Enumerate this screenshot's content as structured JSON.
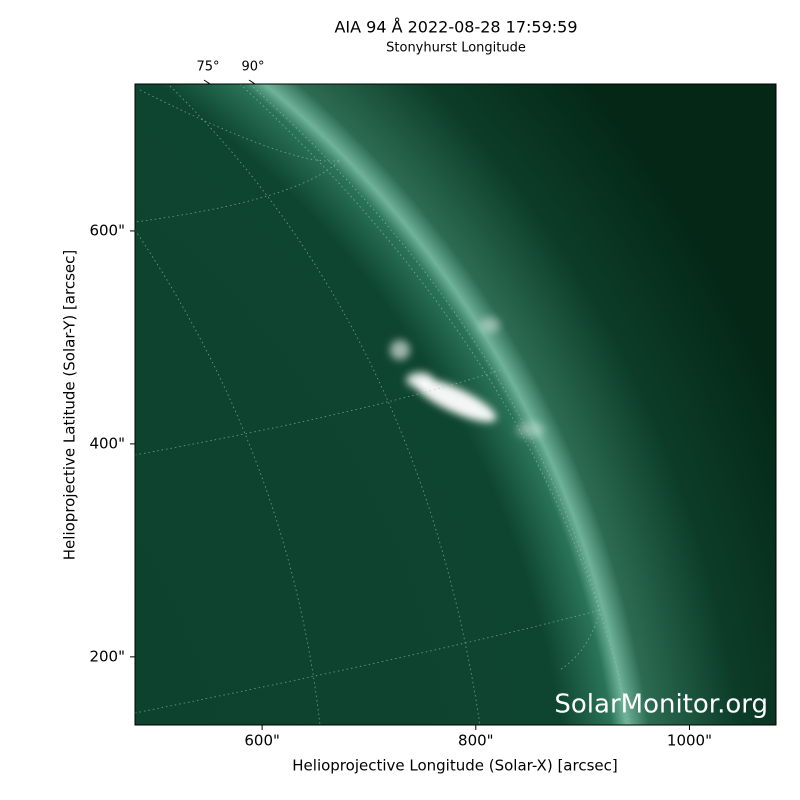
{
  "chart_data": {
    "type": "image",
    "title": "AIA 94 Å 2022-08-28 17:59:59",
    "top_axis_label": "Stonyhurst Longitude",
    "top_ticks": [
      {
        "value": 75,
        "label": "75°"
      },
      {
        "value": 90,
        "label": "90°"
      }
    ],
    "xlabel": "Helioprojective Longitude (Solar-X) [arcsec]",
    "ylabel": "Helioprojective Latitude (Solar-Y) [arcsec]",
    "xlim": [
      481,
      1081
    ],
    "ylim": [
      136,
      738
    ],
    "xticks": [
      {
        "value": 600,
        "label": "600\""
      },
      {
        "value": 800,
        "label": "800\""
      },
      {
        "value": 1000,
        "label": "1000\""
      }
    ],
    "yticks": [
      {
        "value": 200,
        "label": "200\""
      },
      {
        "value": 400,
        "label": "400\""
      },
      {
        "value": 600,
        "label": "600\""
      }
    ],
    "watermark": "SolarMonitor.org"
  }
}
